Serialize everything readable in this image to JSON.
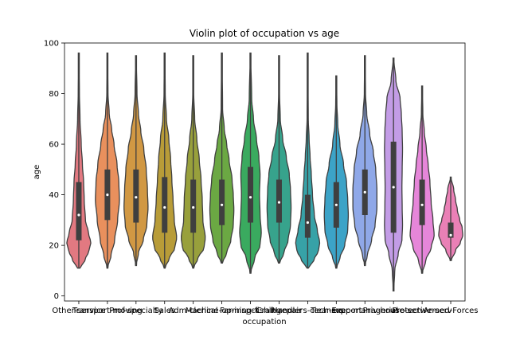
{
  "chart_data": {
    "type": "violin",
    "title": "Violin plot of occupation vs age",
    "xlabel": "occupation",
    "ylabel": "age",
    "ylim": [
      -2,
      100
    ],
    "yticks": [
      0,
      20,
      40,
      60,
      80,
      100
    ],
    "categories": [
      {
        "name": "Other-service",
        "color": "#e27981",
        "min": 11,
        "max": 96,
        "q1": 22,
        "median": 32,
        "q3": 45,
        "mode": 21,
        "profile": [
          [
            11,
            0.1
          ],
          [
            14,
            0.5
          ],
          [
            18,
            0.85
          ],
          [
            21,
            1.0
          ],
          [
            25,
            0.8
          ],
          [
            30,
            0.55
          ],
          [
            38,
            0.45
          ],
          [
            45,
            0.4
          ],
          [
            52,
            0.3
          ],
          [
            60,
            0.2
          ],
          [
            70,
            0.1
          ],
          [
            80,
            0.05
          ],
          [
            96,
            0.02
          ]
        ]
      },
      {
        "name": "Transport-moving",
        "color": "#e9905d",
        "min": 11,
        "max": 96,
        "q1": 30,
        "median": 40,
        "q3": 50,
        "mode": 40,
        "profile": [
          [
            11,
            0.02
          ],
          [
            16,
            0.3
          ],
          [
            22,
            0.6
          ],
          [
            30,
            0.85
          ],
          [
            38,
            1.0
          ],
          [
            45,
            0.95
          ],
          [
            52,
            0.8
          ],
          [
            60,
            0.55
          ],
          [
            66,
            0.35
          ],
          [
            72,
            0.15
          ],
          [
            80,
            0.05
          ],
          [
            96,
            0.02
          ]
        ]
      },
      {
        "name": "Prof-specialty",
        "color": "#d19843",
        "min": 12,
        "max": 95,
        "q1": 29,
        "median": 39,
        "q3": 50,
        "mode": 36,
        "profile": [
          [
            12,
            0.02
          ],
          [
            17,
            0.2
          ],
          [
            22,
            0.6
          ],
          [
            28,
            0.9
          ],
          [
            35,
            1.0
          ],
          [
            42,
            0.95
          ],
          [
            50,
            0.85
          ],
          [
            58,
            0.65
          ],
          [
            65,
            0.4
          ],
          [
            72,
            0.2
          ],
          [
            80,
            0.08
          ],
          [
            95,
            0.02
          ]
        ]
      },
      {
        "name": "Sales",
        "color": "#b89c38",
        "min": 11,
        "max": 96,
        "q1": 25,
        "median": 35,
        "q3": 47,
        "mode": 23,
        "profile": [
          [
            11,
            0.02
          ],
          [
            15,
            0.4
          ],
          [
            19,
            0.85
          ],
          [
            23,
            1.0
          ],
          [
            30,
            0.8
          ],
          [
            38,
            0.7
          ],
          [
            46,
            0.6
          ],
          [
            54,
            0.5
          ],
          [
            62,
            0.35
          ],
          [
            70,
            0.15
          ],
          [
            80,
            0.05
          ],
          [
            96,
            0.02
          ]
        ]
      },
      {
        "name": "Adm-clerical",
        "color": "#98a03c",
        "min": 11,
        "max": 95,
        "q1": 25,
        "median": 35,
        "q3": 46,
        "mode": 23,
        "profile": [
          [
            11,
            0.02
          ],
          [
            15,
            0.4
          ],
          [
            19,
            0.9
          ],
          [
            23,
            1.0
          ],
          [
            30,
            0.8
          ],
          [
            38,
            0.75
          ],
          [
            46,
            0.65
          ],
          [
            54,
            0.5
          ],
          [
            62,
            0.3
          ],
          [
            70,
            0.12
          ],
          [
            80,
            0.04
          ],
          [
            95,
            0.02
          ]
        ]
      },
      {
        "name": "Machine-op-inspct",
        "color": "#6ba843",
        "min": 13,
        "max": 96,
        "q1": 28,
        "median": 36,
        "q3": 46,
        "mode": 33,
        "profile": [
          [
            13,
            0.05
          ],
          [
            17,
            0.4
          ],
          [
            22,
            0.75
          ],
          [
            28,
            0.95
          ],
          [
            34,
            1.0
          ],
          [
            40,
            0.95
          ],
          [
            46,
            0.85
          ],
          [
            54,
            0.6
          ],
          [
            60,
            0.4
          ],
          [
            66,
            0.2
          ],
          [
            74,
            0.06
          ],
          [
            96,
            0.02
          ]
        ]
      },
      {
        "name": "Farming-fishing",
        "color": "#3aaa5f",
        "min": 9,
        "max": 96,
        "q1": 29,
        "median": 39,
        "q3": 51,
        "mode": 24,
        "profile": [
          [
            9,
            0.02
          ],
          [
            15,
            0.35
          ],
          [
            20,
            0.8
          ],
          [
            25,
            0.9
          ],
          [
            32,
            0.8
          ],
          [
            40,
            0.75
          ],
          [
            48,
            0.8
          ],
          [
            55,
            0.7
          ],
          [
            62,
            0.5
          ],
          [
            70,
            0.25
          ],
          [
            78,
            0.1
          ],
          [
            96,
            0.02
          ]
        ]
      },
      {
        "name": "Craft-repair",
        "color": "#37a38c",
        "min": 13,
        "max": 95,
        "q1": 29,
        "median": 37,
        "q3": 46,
        "mode": 35,
        "profile": [
          [
            13,
            0.05
          ],
          [
            17,
            0.4
          ],
          [
            22,
            0.75
          ],
          [
            28,
            0.95
          ],
          [
            35,
            1.0
          ],
          [
            42,
            0.95
          ],
          [
            48,
            0.85
          ],
          [
            55,
            0.6
          ],
          [
            62,
            0.3
          ],
          [
            70,
            0.1
          ],
          [
            80,
            0.04
          ],
          [
            95,
            0.02
          ]
        ]
      },
      {
        "name": "Handlers-cleaners",
        "color": "#37a2a7",
        "min": 11,
        "max": 96,
        "q1": 23,
        "median": 29,
        "q3": 40,
        "mode": 21,
        "profile": [
          [
            11,
            0.05
          ],
          [
            14,
            0.5
          ],
          [
            18,
            0.9
          ],
          [
            21,
            1.0
          ],
          [
            26,
            0.8
          ],
          [
            32,
            0.55
          ],
          [
            40,
            0.4
          ],
          [
            48,
            0.3
          ],
          [
            55,
            0.2
          ],
          [
            62,
            0.12
          ],
          [
            70,
            0.05
          ],
          [
            96,
            0.01
          ]
        ]
      },
      {
        "name": "Tech-support",
        "color": "#3ca3c7",
        "min": 11,
        "max": 87,
        "q1": 27,
        "median": 36,
        "q3": 45,
        "mode": 27,
        "profile": [
          [
            11,
            0.02
          ],
          [
            15,
            0.3
          ],
          [
            20,
            0.7
          ],
          [
            26,
            0.95
          ],
          [
            32,
            1.0
          ],
          [
            38,
            0.95
          ],
          [
            45,
            0.85
          ],
          [
            52,
            0.6
          ],
          [
            60,
            0.3
          ],
          [
            68,
            0.12
          ],
          [
            76,
            0.05
          ],
          [
            87,
            0.01
          ]
        ]
      },
      {
        "name": "Exec-managerial",
        "color": "#8fa8e8",
        "min": 12,
        "max": 95,
        "q1": 32,
        "median": 41,
        "q3": 50,
        "mode": 38,
        "profile": [
          [
            12,
            0.01
          ],
          [
            16,
            0.2
          ],
          [
            22,
            0.55
          ],
          [
            28,
            0.85
          ],
          [
            35,
            1.0
          ],
          [
            42,
            1.0
          ],
          [
            50,
            0.9
          ],
          [
            57,
            0.7
          ],
          [
            64,
            0.4
          ],
          [
            72,
            0.15
          ],
          [
            80,
            0.05
          ],
          [
            95,
            0.02
          ]
        ]
      },
      {
        "name": "Priv-house-serv",
        "color": "#c39ce6",
        "min": 2,
        "max": 94,
        "q1": 25,
        "median": 43,
        "q3": 61,
        "mode": 22,
        "profile": [
          [
            2,
            0.02
          ],
          [
            10,
            0.1
          ],
          [
            17,
            0.4
          ],
          [
            22,
            0.7
          ],
          [
            28,
            0.75
          ],
          [
            35,
            0.72
          ],
          [
            43,
            0.7
          ],
          [
            50,
            0.72
          ],
          [
            58,
            0.75
          ],
          [
            65,
            0.72
          ],
          [
            72,
            0.65
          ],
          [
            78,
            0.55
          ],
          [
            85,
            0.2
          ],
          [
            94,
            0.02
          ]
        ]
      },
      {
        "name": "Protective-serv",
        "color": "#e686d9",
        "min": 9,
        "max": 83,
        "q1": 28,
        "median": 36,
        "q3": 46,
        "mode": 24,
        "profile": [
          [
            9,
            0.02
          ],
          [
            14,
            0.3
          ],
          [
            19,
            0.75
          ],
          [
            24,
            1.0
          ],
          [
            30,
            0.9
          ],
          [
            37,
            0.75
          ],
          [
            45,
            0.65
          ],
          [
            52,
            0.5
          ],
          [
            58,
            0.35
          ],
          [
            65,
            0.18
          ],
          [
            72,
            0.06
          ],
          [
            83,
            0.02
          ]
        ]
      },
      {
        "name": "Armed-Forces",
        "color": "#ea80b6",
        "min": 14,
        "max": 47,
        "q1": 23,
        "median": 24,
        "q3": 29,
        "mode": 24,
        "profile": [
          [
            14,
            0.05
          ],
          [
            18,
            0.4
          ],
          [
            21,
            0.8
          ],
          [
            24,
            1.0
          ],
          [
            27,
            0.95
          ],
          [
            30,
            0.75
          ],
          [
            34,
            0.55
          ],
          [
            38,
            0.4
          ],
          [
            42,
            0.25
          ],
          [
            47,
            0.02
          ]
        ]
      }
    ]
  }
}
